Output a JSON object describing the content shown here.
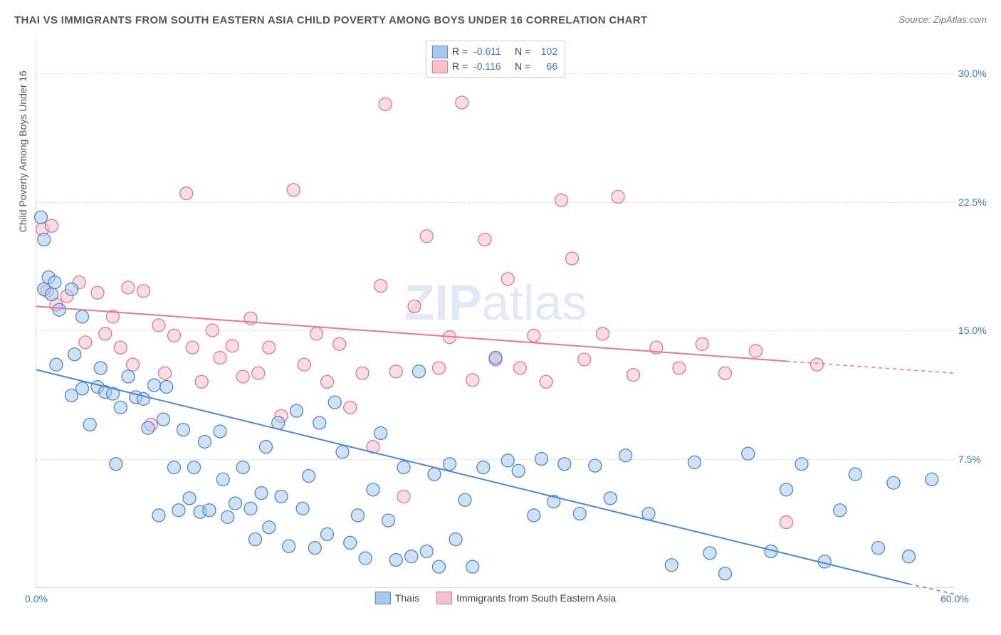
{
  "title": "THAI VS IMMIGRANTS FROM SOUTH EASTERN ASIA CHILD POVERTY AMONG BOYS UNDER 16 CORRELATION CHART",
  "source": "Source: ZipAtlas.com",
  "ylabel": "Child Poverty Among Boys Under 16",
  "watermark_a": "ZIP",
  "watermark_b": "atlas",
  "colors": {
    "series_a_fill": "#a8c9ec",
    "series_a_stroke": "#4c89d6",
    "series_b_fill": "#f5c1cb",
    "series_b_stroke": "#e7788f",
    "tick_blue": "#3878d6",
    "grid": "#e2e2e2",
    "axis": "#d8d8d8",
    "text": "#555555"
  },
  "x_range": [
    0,
    60
  ],
  "y_range": [
    0,
    32
  ],
  "y_ticks": [
    {
      "v": 7.5,
      "label": "7.5%"
    },
    {
      "v": 15.0,
      "label": "15.0%"
    },
    {
      "v": 22.5,
      "label": "22.5%"
    },
    {
      "v": 30.0,
      "label": "30.0%"
    }
  ],
  "x_ticks": [
    {
      "v": 0,
      "label": "0.0%"
    },
    {
      "v": 60,
      "label": "60.0%"
    }
  ],
  "stats": [
    {
      "r_label": "R =",
      "r": "-0.611",
      "n_label": "N =",
      "n": "102",
      "fill": "#a8c9ec",
      "stroke": "#4c89d6"
    },
    {
      "r_label": "R =",
      "r": "-0.116",
      "n_label": "N =",
      "n": "66",
      "fill": "#f5c1cb",
      "stroke": "#e7788f"
    }
  ],
  "bottom_legend": [
    {
      "label": "Thais",
      "fill": "#a8c9ec",
      "stroke": "#4c89d6"
    },
    {
      "label": "Immigrants from South Eastern Asia",
      "fill": "#f5c1cb",
      "stroke": "#e7788f"
    }
  ],
  "marker_radius": 9,
  "line_a": {
    "x1": 0,
    "y1": 12.7,
    "x2": 57,
    "y2": 0.2,
    "dash_x2": 60,
    "dash_y2": -0.4
  },
  "line_b": {
    "x1": 0,
    "y1": 16.4,
    "x2": 49,
    "y2": 13.2,
    "dash_x2": 60,
    "dash_y2": 12.5
  },
  "series_a": [
    [
      0.3,
      21.6
    ],
    [
      0.5,
      20.3
    ],
    [
      0.5,
      17.4
    ],
    [
      0.8,
      18.1
    ],
    [
      1.0,
      17.1
    ],
    [
      1.2,
      17.8
    ],
    [
      1.3,
      13.0
    ],
    [
      1.5,
      16.2
    ],
    [
      2.3,
      17.4
    ],
    [
      2.3,
      11.2
    ],
    [
      2.5,
      13.6
    ],
    [
      3.0,
      11.6
    ],
    [
      3.0,
      15.8
    ],
    [
      3.5,
      9.5
    ],
    [
      4.0,
      11.7
    ],
    [
      4.2,
      12.8
    ],
    [
      4.5,
      11.4
    ],
    [
      5.0,
      11.3
    ],
    [
      5.2,
      7.2
    ],
    [
      5.5,
      10.5
    ],
    [
      6.0,
      12.3
    ],
    [
      6.5,
      11.1
    ],
    [
      7.0,
      11.0
    ],
    [
      7.3,
      9.3
    ],
    [
      7.7,
      11.8
    ],
    [
      8.0,
      4.2
    ],
    [
      8.3,
      9.8
    ],
    [
      8.5,
      11.7
    ],
    [
      9.0,
      7.0
    ],
    [
      9.3,
      4.5
    ],
    [
      9.6,
      9.2
    ],
    [
      10.0,
      5.2
    ],
    [
      10.3,
      7.0
    ],
    [
      10.7,
      4.4
    ],
    [
      11.0,
      8.5
    ],
    [
      11.3,
      4.5
    ],
    [
      12.0,
      9.1
    ],
    [
      12.2,
      6.3
    ],
    [
      12.5,
      4.1
    ],
    [
      13.0,
      4.9
    ],
    [
      13.5,
      7.0
    ],
    [
      14.0,
      4.6
    ],
    [
      14.3,
      2.8
    ],
    [
      14.7,
      5.5
    ],
    [
      15.0,
      8.2
    ],
    [
      15.2,
      3.5
    ],
    [
      15.8,
      9.6
    ],
    [
      16.0,
      5.3
    ],
    [
      16.5,
      2.4
    ],
    [
      17.0,
      10.3
    ],
    [
      17.4,
      4.6
    ],
    [
      17.8,
      6.5
    ],
    [
      18.2,
      2.3
    ],
    [
      18.5,
      9.6
    ],
    [
      19.0,
      3.1
    ],
    [
      19.5,
      10.8
    ],
    [
      20.0,
      7.9
    ],
    [
      20.5,
      2.6
    ],
    [
      21.0,
      4.2
    ],
    [
      21.5,
      1.7
    ],
    [
      22.0,
      5.7
    ],
    [
      22.5,
      9.0
    ],
    [
      23.0,
      3.9
    ],
    [
      23.5,
      1.6
    ],
    [
      24.0,
      7.0
    ],
    [
      24.5,
      1.8
    ],
    [
      25.0,
      12.6
    ],
    [
      25.5,
      2.1
    ],
    [
      26.0,
      6.6
    ],
    [
      26.3,
      1.2
    ],
    [
      27.0,
      7.2
    ],
    [
      27.4,
      2.8
    ],
    [
      28.0,
      5.1
    ],
    [
      28.5,
      1.2
    ],
    [
      29.2,
      7.0
    ],
    [
      30.0,
      13.4
    ],
    [
      30.8,
      7.4
    ],
    [
      31.5,
      6.8
    ],
    [
      32.5,
      4.2
    ],
    [
      33.0,
      7.5
    ],
    [
      33.8,
      5.0
    ],
    [
      34.5,
      7.2
    ],
    [
      35.5,
      4.3
    ],
    [
      36.5,
      7.1
    ],
    [
      37.5,
      5.2
    ],
    [
      38.5,
      7.7
    ],
    [
      40.0,
      4.3
    ],
    [
      41.5,
      1.3
    ],
    [
      43.0,
      7.3
    ],
    [
      44.0,
      2.0
    ],
    [
      45.0,
      0.8
    ],
    [
      46.5,
      7.8
    ],
    [
      48.0,
      2.1
    ],
    [
      49.0,
      5.7
    ],
    [
      50.0,
      7.2
    ],
    [
      51.5,
      1.5
    ],
    [
      52.5,
      4.5
    ],
    [
      53.5,
      6.6
    ],
    [
      55.0,
      2.3
    ],
    [
      56.0,
      6.1
    ],
    [
      57.0,
      1.8
    ],
    [
      58.5,
      6.3
    ]
  ],
  "series_b": [
    [
      0.4,
      20.9
    ],
    [
      0.7,
      17.3
    ],
    [
      1.0,
      21.1
    ],
    [
      1.3,
      16.5
    ],
    [
      2.0,
      17.0
    ],
    [
      2.8,
      17.8
    ],
    [
      3.2,
      14.3
    ],
    [
      4.0,
      17.2
    ],
    [
      4.5,
      14.8
    ],
    [
      5.0,
      15.8
    ],
    [
      5.5,
      14.0
    ],
    [
      6.0,
      17.5
    ],
    [
      6.3,
      13.0
    ],
    [
      7.0,
      17.3
    ],
    [
      7.5,
      9.5
    ],
    [
      8.0,
      15.3
    ],
    [
      8.4,
      12.5
    ],
    [
      9.0,
      14.7
    ],
    [
      9.8,
      23.0
    ],
    [
      10.2,
      14.0
    ],
    [
      10.8,
      12.0
    ],
    [
      11.5,
      15.0
    ],
    [
      12.0,
      13.4
    ],
    [
      12.8,
      14.1
    ],
    [
      13.5,
      12.3
    ],
    [
      14.0,
      15.7
    ],
    [
      14.5,
      12.5
    ],
    [
      15.2,
      14.0
    ],
    [
      16.0,
      10.0
    ],
    [
      16.8,
      23.2
    ],
    [
      17.5,
      13.0
    ],
    [
      18.3,
      14.8
    ],
    [
      19.0,
      12.0
    ],
    [
      19.8,
      14.2
    ],
    [
      20.5,
      10.5
    ],
    [
      21.3,
      12.5
    ],
    [
      22.0,
      8.2
    ],
    [
      22.5,
      17.6
    ],
    [
      22.8,
      28.2
    ],
    [
      23.5,
      12.6
    ],
    [
      24.0,
      5.3
    ],
    [
      24.7,
      16.4
    ],
    [
      25.5,
      20.5
    ],
    [
      26.3,
      12.8
    ],
    [
      27.0,
      14.6
    ],
    [
      27.8,
      28.3
    ],
    [
      28.5,
      12.1
    ],
    [
      29.3,
      20.3
    ],
    [
      30.0,
      13.3
    ],
    [
      30.8,
      18.0
    ],
    [
      31.6,
      12.8
    ],
    [
      32.5,
      14.7
    ],
    [
      33.3,
      12.0
    ],
    [
      34.3,
      22.6
    ],
    [
      35.0,
      19.2
    ],
    [
      35.8,
      13.3
    ],
    [
      37.0,
      14.8
    ],
    [
      38.0,
      22.8
    ],
    [
      39.0,
      12.4
    ],
    [
      40.5,
      14.0
    ],
    [
      42.0,
      12.8
    ],
    [
      43.5,
      14.2
    ],
    [
      45.0,
      12.5
    ],
    [
      47.0,
      13.8
    ],
    [
      49.0,
      3.8
    ],
    [
      51.0,
      13.0
    ]
  ]
}
